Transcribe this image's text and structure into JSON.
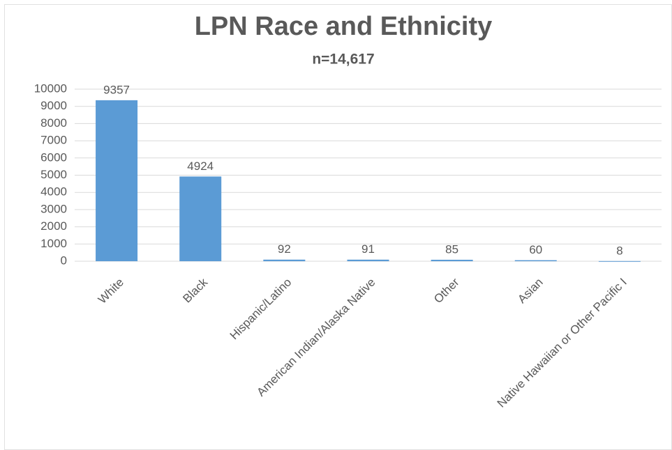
{
  "chart_data": {
    "type": "bar",
    "title": "LPN Race and Ethnicity",
    "subtitle": "n=14,617",
    "categories": [
      "White",
      "Black",
      "Hispanic/Latino",
      "American Indian/Alaska Native",
      "Other",
      "Asian",
      "Native Hawaiian or Other Pacific I"
    ],
    "values": [
      9357,
      4924,
      92,
      91,
      85,
      60,
      8
    ],
    "color": "#5b9bd5",
    "ylim": [
      0,
      10000
    ],
    "yticks": [
      0,
      1000,
      2000,
      3000,
      4000,
      5000,
      6000,
      7000,
      8000,
      9000,
      10000
    ],
    "grid": true
  }
}
